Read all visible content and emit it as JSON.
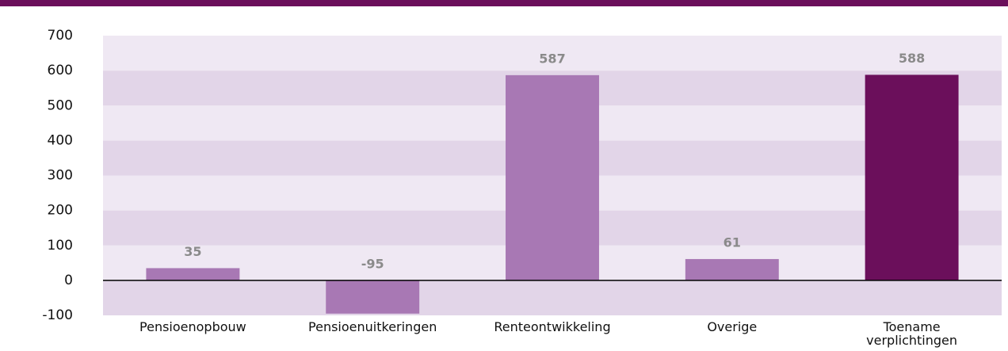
{
  "chart_data": {
    "type": "bar",
    "categories": [
      "Pensioenopbouw",
      "Pensioenuitkeringen",
      "Renteontwikkeling",
      "Overige",
      "Toename verplichtingen"
    ],
    "values": [
      35,
      -95,
      587,
      61,
      588
    ],
    "colors": [
      "#a878b4",
      "#a878b4",
      "#a878b4",
      "#a878b4",
      "#6b0f5b"
    ],
    "ylim": [
      -100,
      700
    ],
    "yticks": [
      -100,
      0,
      100,
      200,
      300,
      400,
      500,
      600,
      700
    ],
    "grid": true
  }
}
